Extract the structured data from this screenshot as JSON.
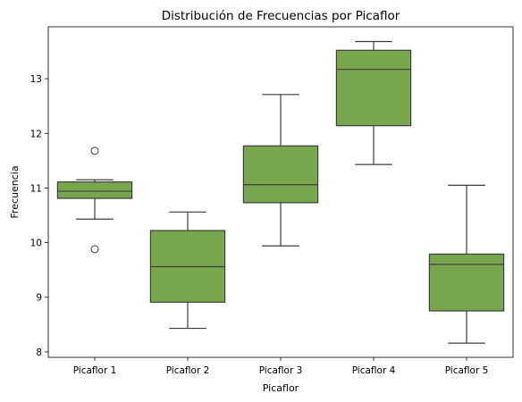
{
  "chart_data": {
    "type": "box",
    "title": "Distribución de Frecuencias por Picaflor",
    "xlabel": "Picaflor",
    "ylabel": "Frecuencia",
    "categories": [
      "Picaflor 1",
      "Picaflor 2",
      "Picaflor 3",
      "Picaflor 4",
      "Picaflor 5"
    ],
    "ylim": [
      7.9,
      13.95
    ],
    "yticks": [
      8,
      9,
      10,
      11,
      12,
      13
    ],
    "grid": false,
    "legend": "none",
    "box_color": "#77a64c",
    "line_color": "#3d3d3d",
    "boxes": [
      {
        "category": "Picaflor 1",
        "whisker_low": 10.43,
        "q1": 10.81,
        "median": 10.94,
        "q3": 11.11,
        "whisker_high": 11.15,
        "outliers": [
          11.68,
          9.88
        ]
      },
      {
        "category": "Picaflor 2",
        "whisker_low": 8.43,
        "q1": 8.91,
        "median": 9.56,
        "q3": 10.22,
        "whisker_high": 10.56,
        "outliers": []
      },
      {
        "category": "Picaflor 3",
        "whisker_low": 9.94,
        "q1": 10.73,
        "median": 11.06,
        "q3": 11.77,
        "whisker_high": 12.71,
        "outliers": []
      },
      {
        "category": "Picaflor 4",
        "whisker_low": 11.43,
        "q1": 12.14,
        "median": 13.17,
        "q3": 13.52,
        "whisker_high": 13.68,
        "outliers": []
      },
      {
        "category": "Picaflor 5",
        "whisker_low": 8.16,
        "q1": 8.75,
        "median": 9.6,
        "q3": 9.79,
        "whisker_high": 11.05,
        "outliers": []
      }
    ]
  }
}
